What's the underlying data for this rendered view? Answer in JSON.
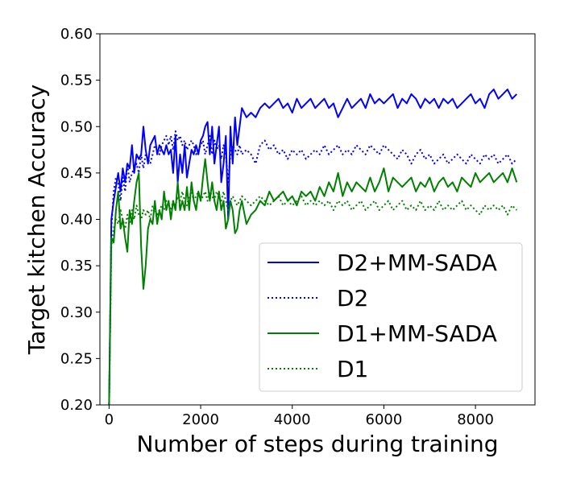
{
  "chart_data": {
    "type": "line",
    "title": "",
    "xlabel": "Number of steps during training",
    "ylabel": "Target kitchen Accuracy",
    "xlim": [
      -200,
      9300
    ],
    "ylim": [
      0.2,
      0.6
    ],
    "xticks": [
      0,
      2000,
      4000,
      6000,
      8000
    ],
    "xtick_labels": [
      "0",
      "2000",
      "4000",
      "6000",
      "8000"
    ],
    "yticks": [
      0.2,
      0.25,
      0.3,
      0.35,
      0.4,
      0.45,
      0.5,
      0.55,
      0.6
    ],
    "ytick_labels": [
      "0.20",
      "0.25",
      "0.30",
      "0.35",
      "0.40",
      "0.45",
      "0.50",
      "0.55",
      "0.60"
    ],
    "legend_position": "lower-right",
    "series": [
      {
        "name": "D2+MM-SADA",
        "color": "#0000ff",
        "style": "solid",
        "x": [
          0,
          50,
          100,
          150,
          200,
          250,
          300,
          350,
          400,
          450,
          500,
          550,
          600,
          650,
          700,
          750,
          800,
          850,
          900,
          950,
          1000,
          1050,
          1100,
          1150,
          1200,
          1250,
          1300,
          1350,
          1400,
          1450,
          1500,
          1550,
          1600,
          1650,
          1700,
          1750,
          1800,
          1850,
          1900,
          1950,
          2000,
          2050,
          2100,
          2150,
          2200,
          2250,
          2300,
          2350,
          2400,
          2450,
          2500,
          2550,
          2600,
          2650,
          2700,
          2750,
          2800,
          2850,
          2900,
          3000,
          3100,
          3200,
          3300,
          3400,
          3500,
          3600,
          3700,
          3800,
          3900,
          4000,
          4100,
          4200,
          4300,
          4400,
          4500,
          4600,
          4700,
          4800,
          4900,
          5000,
          5100,
          5200,
          5300,
          5400,
          5500,
          5600,
          5700,
          5800,
          5900,
          6000,
          6100,
          6200,
          6300,
          6400,
          6500,
          6600,
          6700,
          6800,
          6900,
          7000,
          7100,
          7200,
          7300,
          7400,
          7500,
          7600,
          7700,
          7800,
          7900,
          8000,
          8100,
          8200,
          8300,
          8400,
          8500,
          8600,
          8700,
          8800,
          8900
        ],
        "values": [
          0.2,
          0.4,
          0.42,
          0.435,
          0.45,
          0.43,
          0.455,
          0.44,
          0.46,
          0.455,
          0.48,
          0.45,
          0.47,
          0.465,
          0.47,
          0.5,
          0.475,
          0.46,
          0.48,
          0.485,
          0.49,
          0.47,
          0.48,
          0.475,
          0.47,
          0.48,
          0.47,
          0.475,
          0.45,
          0.49,
          0.44,
          0.47,
          0.45,
          0.48,
          0.445,
          0.46,
          0.475,
          0.47,
          0.48,
          0.47,
          0.485,
          0.49,
          0.5,
          0.505,
          0.47,
          0.5,
          0.46,
          0.48,
          0.5,
          0.44,
          0.46,
          0.49,
          0.4,
          0.5,
          0.46,
          0.51,
          0.48,
          0.5,
          0.52,
          0.51,
          0.515,
          0.51,
          0.52,
          0.525,
          0.52,
          0.525,
          0.53,
          0.52,
          0.525,
          0.515,
          0.53,
          0.52,
          0.525,
          0.53,
          0.52,
          0.525,
          0.53,
          0.52,
          0.525,
          0.51,
          0.52,
          0.53,
          0.52,
          0.525,
          0.53,
          0.52,
          0.535,
          0.525,
          0.53,
          0.525,
          0.53,
          0.535,
          0.52,
          0.53,
          0.525,
          0.535,
          0.53,
          0.52,
          0.53,
          0.525,
          0.53,
          0.52,
          0.53,
          0.525,
          0.53,
          0.52,
          0.525,
          0.53,
          0.535,
          0.525,
          0.53,
          0.52,
          0.535,
          0.54,
          0.53,
          0.535,
          0.54,
          0.53,
          0.535
        ]
      },
      {
        "name": "D2",
        "color": "#0000ff",
        "style": "dotted",
        "x": [
          0,
          50,
          100,
          150,
          200,
          250,
          300,
          350,
          400,
          450,
          500,
          550,
          600,
          650,
          700,
          750,
          800,
          850,
          900,
          950,
          1000,
          1050,
          1100,
          1150,
          1200,
          1250,
          1300,
          1350,
          1400,
          1450,
          1500,
          1550,
          1600,
          1650,
          1700,
          1750,
          1800,
          1850,
          1900,
          1950,
          2000,
          2050,
          2100,
          2150,
          2200,
          2250,
          2300,
          2350,
          2400,
          2450,
          2500,
          2550,
          2600,
          2650,
          2700,
          2750,
          2800,
          2850,
          2900,
          3000,
          3100,
          3200,
          3300,
          3400,
          3500,
          3600,
          3700,
          3800,
          3900,
          4000,
          4100,
          4200,
          4300,
          4400,
          4500,
          4600,
          4700,
          4800,
          4900,
          5000,
          5100,
          5200,
          5300,
          5400,
          5500,
          5600,
          5700,
          5800,
          5900,
          6000,
          6100,
          6200,
          6300,
          6400,
          6500,
          6600,
          6700,
          6800,
          6900,
          7000,
          7100,
          7200,
          7300,
          7400,
          7500,
          7600,
          7700,
          7800,
          7900,
          8000,
          8100,
          8200,
          8300,
          8400,
          8500,
          8600,
          8700,
          8800,
          8900
        ],
        "values": [
          0.2,
          0.39,
          0.43,
          0.445,
          0.44,
          0.42,
          0.445,
          0.43,
          0.46,
          0.44,
          0.45,
          0.455,
          0.46,
          0.45,
          0.47,
          0.455,
          0.47,
          0.465,
          0.46,
          0.47,
          0.48,
          0.475,
          0.47,
          0.48,
          0.485,
          0.49,
          0.48,
          0.49,
          0.475,
          0.495,
          0.485,
          0.49,
          0.48,
          0.485,
          0.475,
          0.48,
          0.485,
          0.48,
          0.47,
          0.475,
          0.48,
          0.485,
          0.47,
          0.48,
          0.49,
          0.47,
          0.485,
          0.475,
          0.48,
          0.465,
          0.48,
          0.47,
          0.44,
          0.47,
          0.48,
          0.475,
          0.47,
          0.48,
          0.47,
          0.475,
          0.47,
          0.46,
          0.48,
          0.485,
          0.475,
          0.48,
          0.47,
          0.475,
          0.465,
          0.475,
          0.47,
          0.475,
          0.465,
          0.47,
          0.475,
          0.47,
          0.48,
          0.47,
          0.475,
          0.48,
          0.47,
          0.475,
          0.47,
          0.48,
          0.475,
          0.47,
          0.48,
          0.475,
          0.47,
          0.48,
          0.475,
          0.47,
          0.465,
          0.475,
          0.47,
          0.46,
          0.47,
          0.475,
          0.465,
          0.47,
          0.46,
          0.465,
          0.47,
          0.46,
          0.465,
          0.47,
          0.465,
          0.46,
          0.47,
          0.465,
          0.46,
          0.47,
          0.465,
          0.47,
          0.46,
          0.465,
          0.47,
          0.46,
          0.465
        ]
      },
      {
        "name": "D1+MM-SADA",
        "color": "#008000",
        "style": "solid",
        "x": [
          0,
          50,
          100,
          150,
          200,
          250,
          300,
          350,
          400,
          450,
          500,
          550,
          600,
          650,
          700,
          750,
          800,
          850,
          900,
          950,
          1000,
          1050,
          1100,
          1150,
          1200,
          1250,
          1300,
          1350,
          1400,
          1450,
          1500,
          1550,
          1600,
          1650,
          1700,
          1750,
          1800,
          1850,
          1900,
          1950,
          2000,
          2050,
          2100,
          2150,
          2200,
          2250,
          2300,
          2350,
          2400,
          2450,
          2500,
          2550,
          2600,
          2650,
          2700,
          2750,
          2800,
          2850,
          2900,
          3000,
          3100,
          3200,
          3300,
          3400,
          3500,
          3600,
          3700,
          3800,
          3900,
          4000,
          4100,
          4200,
          4300,
          4400,
          4500,
          4600,
          4700,
          4800,
          4900,
          5000,
          5100,
          5200,
          5300,
          5400,
          5500,
          5600,
          5700,
          5800,
          5900,
          6000,
          6100,
          6200,
          6300,
          6400,
          6500,
          6600,
          6700,
          6800,
          6900,
          7000,
          7100,
          7200,
          7300,
          7400,
          7500,
          7600,
          7700,
          7800,
          7900,
          8000,
          8100,
          8200,
          8300,
          8400,
          8500,
          8600,
          8700,
          8800,
          8900
        ],
        "values": [
          0.2,
          0.38,
          0.375,
          0.41,
          0.43,
          0.39,
          0.4,
          0.38,
          0.365,
          0.41,
          0.395,
          0.42,
          0.44,
          0.45,
          0.37,
          0.325,
          0.35,
          0.39,
          0.4,
          0.395,
          0.42,
          0.395,
          0.41,
          0.4,
          0.43,
          0.41,
          0.42,
          0.4,
          0.42,
          0.41,
          0.44,
          0.41,
          0.42,
          0.41,
          0.435,
          0.41,
          0.44,
          0.42,
          0.41,
          0.43,
          0.42,
          0.445,
          0.465,
          0.44,
          0.42,
          0.44,
          0.42,
          0.41,
          0.43,
          0.41,
          0.42,
          0.39,
          0.4,
          0.42,
          0.41,
          0.385,
          0.39,
          0.41,
          0.42,
          0.395,
          0.405,
          0.41,
          0.42,
          0.415,
          0.43,
          0.42,
          0.425,
          0.43,
          0.42,
          0.425,
          0.415,
          0.43,
          0.425,
          0.43,
          0.42,
          0.435,
          0.425,
          0.44,
          0.43,
          0.45,
          0.425,
          0.44,
          0.43,
          0.44,
          0.435,
          0.43,
          0.445,
          0.43,
          0.44,
          0.455,
          0.43,
          0.445,
          0.44,
          0.435,
          0.44,
          0.445,
          0.43,
          0.44,
          0.435,
          0.445,
          0.43,
          0.44,
          0.445,
          0.435,
          0.44,
          0.43,
          0.445,
          0.44,
          0.435,
          0.45,
          0.44,
          0.445,
          0.45,
          0.44,
          0.445,
          0.45,
          0.44,
          0.455,
          0.44
        ]
      },
      {
        "name": "D1",
        "color": "#008000",
        "style": "dotted",
        "x": [
          0,
          50,
          100,
          150,
          200,
          250,
          300,
          350,
          400,
          450,
          500,
          550,
          600,
          650,
          700,
          750,
          800,
          850,
          900,
          950,
          1000,
          1050,
          1100,
          1150,
          1200,
          1250,
          1300,
          1350,
          1400,
          1450,
          1500,
          1550,
          1600,
          1650,
          1700,
          1750,
          1800,
          1850,
          1900,
          1950,
          2000,
          2050,
          2100,
          2150,
          2200,
          2250,
          2300,
          2350,
          2400,
          2450,
          2500,
          2550,
          2600,
          2650,
          2700,
          2750,
          2800,
          2850,
          2900,
          3000,
          3100,
          3200,
          3300,
          3400,
          3500,
          3600,
          3700,
          3800,
          3900,
          4000,
          4100,
          4200,
          4300,
          4400,
          4500,
          4600,
          4700,
          4800,
          4900,
          5000,
          5100,
          5200,
          5300,
          5400,
          5500,
          5600,
          5700,
          5800,
          5900,
          6000,
          6100,
          6200,
          6300,
          6400,
          6500,
          6600,
          6700,
          6800,
          6900,
          7000,
          7100,
          7200,
          7300,
          7400,
          7500,
          7600,
          7700,
          7800,
          7900,
          8000,
          8100,
          8200,
          8300,
          8400,
          8500,
          8600,
          8700,
          8800,
          8900
        ],
        "values": [
          0.2,
          0.37,
          0.39,
          0.4,
          0.395,
          0.41,
          0.4,
          0.39,
          0.405,
          0.395,
          0.41,
          0.4,
          0.415,
          0.405,
          0.4,
          0.41,
          0.405,
          0.41,
          0.4,
          0.415,
          0.41,
          0.405,
          0.41,
          0.415,
          0.41,
          0.42,
          0.415,
          0.41,
          0.42,
          0.415,
          0.425,
          0.42,
          0.43,
          0.42,
          0.415,
          0.425,
          0.43,
          0.42,
          0.425,
          0.43,
          0.42,
          0.425,
          0.43,
          0.42,
          0.43,
          0.425,
          0.42,
          0.43,
          0.425,
          0.42,
          0.43,
          0.42,
          0.41,
          0.42,
          0.425,
          0.42,
          0.415,
          0.42,
          0.425,
          0.42,
          0.415,
          0.42,
          0.425,
          0.42,
          0.415,
          0.42,
          0.425,
          0.415,
          0.42,
          0.415,
          0.42,
          0.425,
          0.415,
          0.42,
          0.415,
          0.42,
          0.415,
          0.42,
          0.41,
          0.42,
          0.415,
          0.42,
          0.41,
          0.415,
          0.42,
          0.41,
          0.415,
          0.42,
          0.41,
          0.415,
          0.42,
          0.41,
          0.415,
          0.42,
          0.41,
          0.415,
          0.41,
          0.42,
          0.41,
          0.415,
          0.41,
          0.42,
          0.41,
          0.415,
          0.41,
          0.415,
          0.42,
          0.41,
          0.415,
          0.41,
          0.405,
          0.415,
          0.41,
          0.415,
          0.41,
          0.415,
          0.405,
          0.415,
          0.41
        ]
      }
    ]
  }
}
